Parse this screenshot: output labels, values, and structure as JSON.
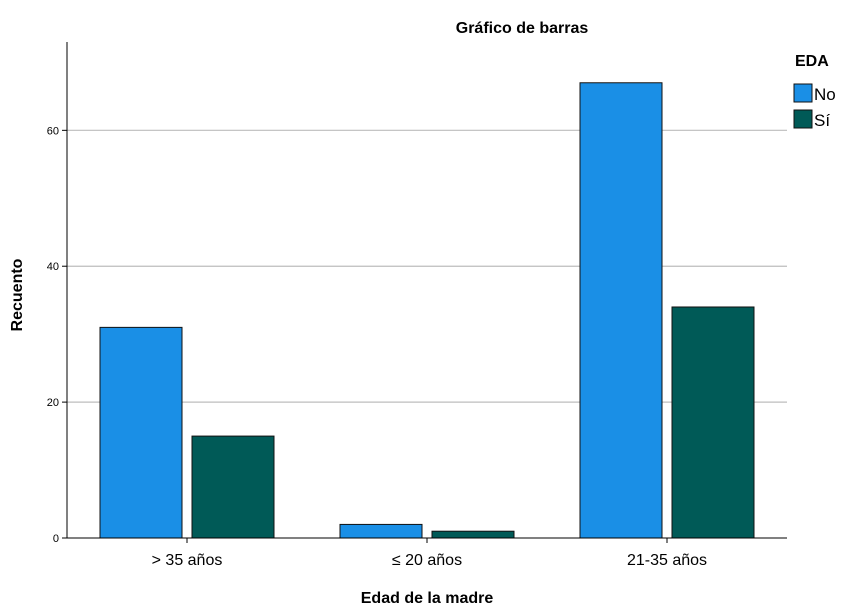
{
  "chart_data": {
    "type": "bar",
    "title": "Gráfico de barras",
    "xlabel": "Edad de la madre",
    "ylabel": "Recuento",
    "categories": [
      "> 35 años",
      "≤ 20 años",
      "21-35 años"
    ],
    "series": [
      {
        "name": "No",
        "values": [
          31,
          2,
          67
        ],
        "color": "#1A8FE6"
      },
      {
        "name": "Sí",
        "values": [
          15,
          1,
          34
        ],
        "color": "#005A57"
      }
    ],
    "ylim": [
      0,
      73
    ],
    "yticks": [
      0,
      20,
      40,
      60
    ],
    "grid": true,
    "legend": {
      "title": "EDA",
      "placement": "top-right"
    }
  }
}
